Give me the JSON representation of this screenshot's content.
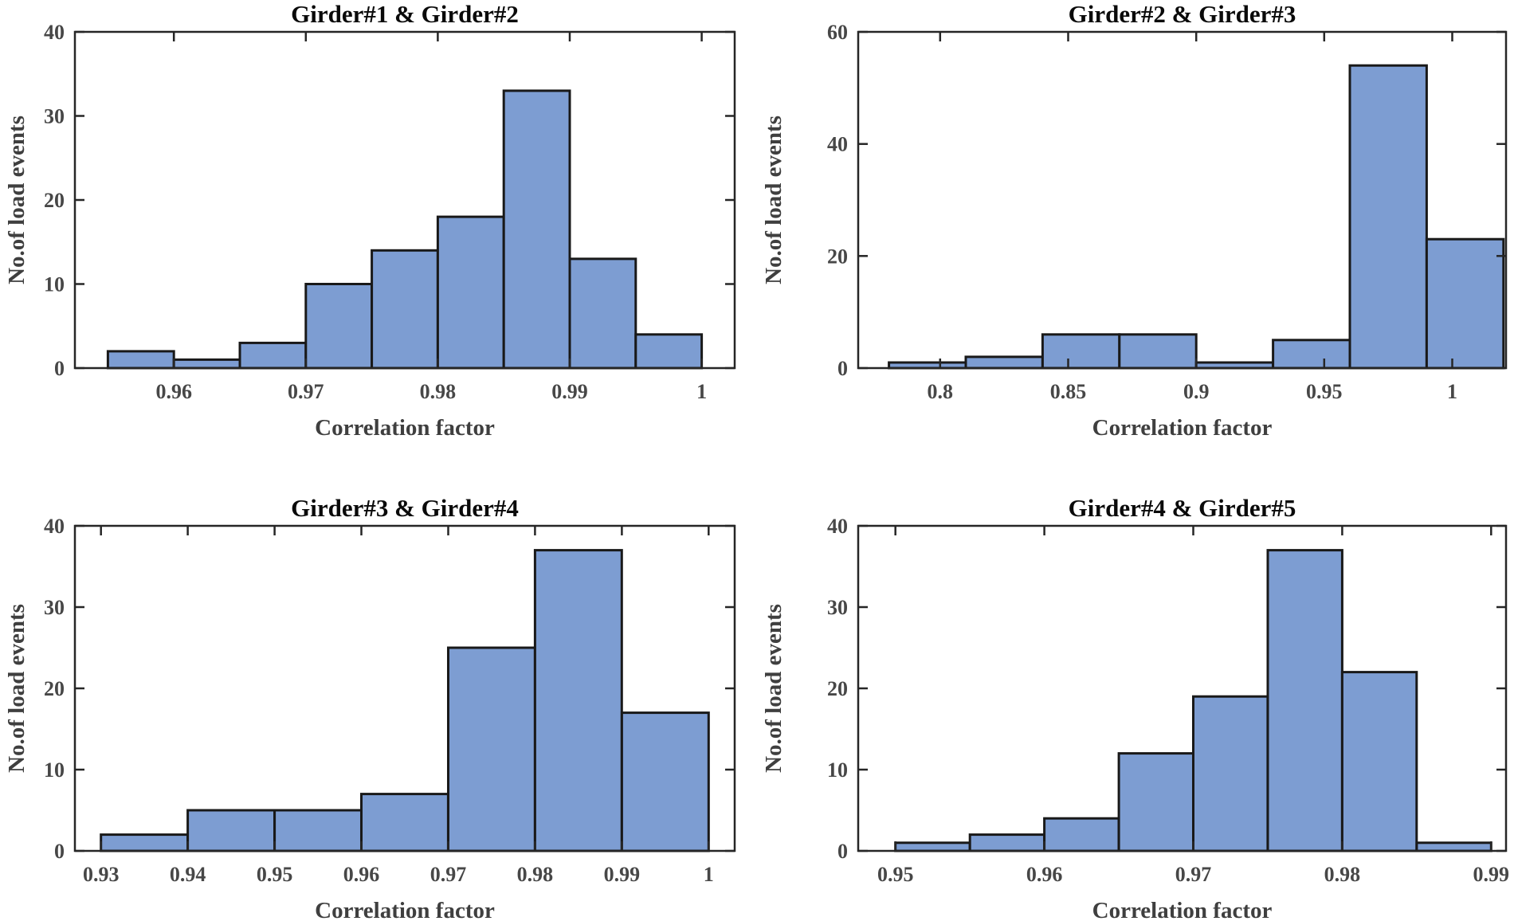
{
  "figure": {
    "background": "#ffffff",
    "shared_xlabel": "Correlation factor",
    "shared_ylabel": "No.of load events"
  },
  "colors": {
    "bar_fill": "#7D9DD2",
    "bar_edge": "#191919",
    "axis": "#262626",
    "tick_label": "#474747",
    "axis_label": "#3f3f3f",
    "title": "#0a0a0a"
  },
  "chart_data": [
    {
      "type": "bar",
      "subtype": "histogram",
      "title": "Girder#1 & Girder#2",
      "xlabel": "Correlation factor",
      "ylabel": "No.of load events",
      "bin_start": 0.955,
      "bin_width": 0.005,
      "counts": [
        2,
        1,
        3,
        10,
        14,
        18,
        33,
        13,
        4
      ],
      "xlim": [
        0.9525,
        1.0025
      ],
      "ylim": [
        0,
        40
      ],
      "xticks": [
        0.96,
        0.97,
        0.98,
        0.99,
        1
      ],
      "xtick_labels": [
        "0.96",
        "0.97",
        "0.98",
        "0.99",
        "1"
      ],
      "yticks": [
        0,
        10,
        20,
        30,
        40
      ],
      "ytick_labels": [
        "0",
        "10",
        "20",
        "30",
        "40"
      ],
      "grid": false,
      "legend": false
    },
    {
      "type": "bar",
      "subtype": "histogram",
      "title": "Girder#2 & Girder#3",
      "xlabel": "Correlation factor",
      "ylabel": "No.of load events",
      "bin_start": 0.78,
      "bin_width": 0.03,
      "counts": [
        1,
        2,
        6,
        6,
        1,
        5,
        54,
        23
      ],
      "xlim": [
        0.768,
        1.021
      ],
      "ylim": [
        0,
        60
      ],
      "xticks": [
        0.8,
        0.85,
        0.9,
        0.95,
        1
      ],
      "xtick_labels": [
        "0.8",
        "0.85",
        "0.9",
        "0.95",
        "1"
      ],
      "yticks": [
        0,
        20,
        40,
        60
      ],
      "ytick_labels": [
        "0",
        "20",
        "40",
        "60"
      ],
      "grid": false,
      "legend": false
    },
    {
      "type": "bar",
      "subtype": "histogram",
      "title": "Girder#3 & Girder#4",
      "xlabel": "Correlation factor",
      "ylabel": "No.of load events",
      "bin_start": 0.93,
      "bin_width": 0.01,
      "counts": [
        2,
        5,
        5,
        7,
        25,
        37,
        17
      ],
      "xlim": [
        0.927,
        1.003
      ],
      "ylim": [
        0,
        40
      ],
      "xticks": [
        0.93,
        0.94,
        0.95,
        0.96,
        0.97,
        0.98,
        0.99,
        1
      ],
      "xtick_labels": [
        "0.93",
        "0.94",
        "0.95",
        "0.96",
        "0.97",
        "0.98",
        "0.99",
        "1"
      ],
      "yticks": [
        0,
        10,
        20,
        30,
        40
      ],
      "ytick_labels": [
        "0",
        "10",
        "20",
        "30",
        "40"
      ],
      "grid": false,
      "legend": false
    },
    {
      "type": "bar",
      "subtype": "histogram",
      "title": "Girder#4 & Girder#5",
      "xlabel": "Correlation factor",
      "ylabel": "No.of load events",
      "bin_start": 0.95,
      "bin_width": 0.005,
      "counts": [
        1,
        2,
        4,
        12,
        19,
        37,
        22,
        1
      ],
      "xlim": [
        0.9475,
        0.991
      ],
      "ylim": [
        0,
        40
      ],
      "xticks": [
        0.95,
        0.96,
        0.97,
        0.98,
        0.99
      ],
      "xtick_labels": [
        "0.95",
        "0.96",
        "0.97",
        "0.98",
        "0.99"
      ],
      "yticks": [
        0,
        10,
        20,
        30,
        40
      ],
      "ytick_labels": [
        "0",
        "10",
        "20",
        "30",
        "40"
      ],
      "grid": false,
      "legend": false
    }
  ]
}
